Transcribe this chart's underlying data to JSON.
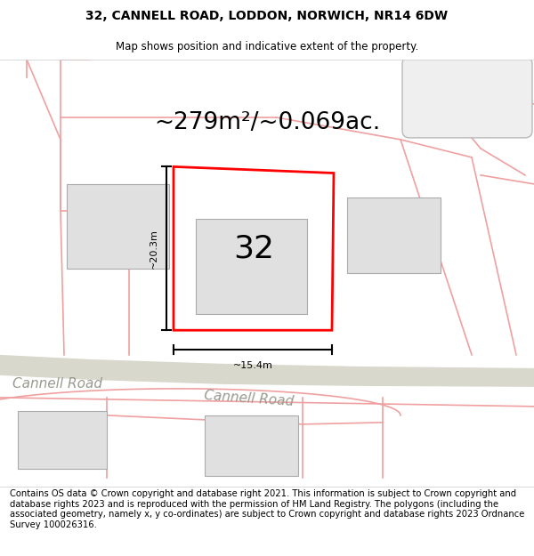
{
  "title_line1": "32, CANNELL ROAD, LODDON, NORWICH, NR14 6DW",
  "title_line2": "Map shows position and indicative extent of the property.",
  "area_text": "~279m²/~0.069ac.",
  "number_label": "32",
  "width_label": "~15.4m",
  "height_label": "~20.3m",
  "road_label1": "Cannell Road",
  "road_label2": "Cannell Road",
  "footer_text": "Contains OS data © Crown copyright and database right 2021. This information is subject to Crown copyright and database rights 2023 and is reproduced with the permission of HM Land Registry. The polygons (including the associated geometry, namely x, y co-ordinates) are subject to Crown copyright and database rights 2023 Ordnance Survey 100026316.",
  "map_bg_color": "#ffffff",
  "plot_outline_color": "#ff0000",
  "building_fill": "#e0e0e0",
  "building_edge": "#aaaaaa",
  "pink_line_color": "#f0a0a0",
  "pink_line_color2": "#e88888",
  "title_fontsize": 10,
  "subtitle_fontsize": 8.5,
  "area_fontsize": 19,
  "label_fontsize": 8,
  "number_fontsize": 26,
  "road_fontsize": 11,
  "footer_fontsize": 7.2
}
